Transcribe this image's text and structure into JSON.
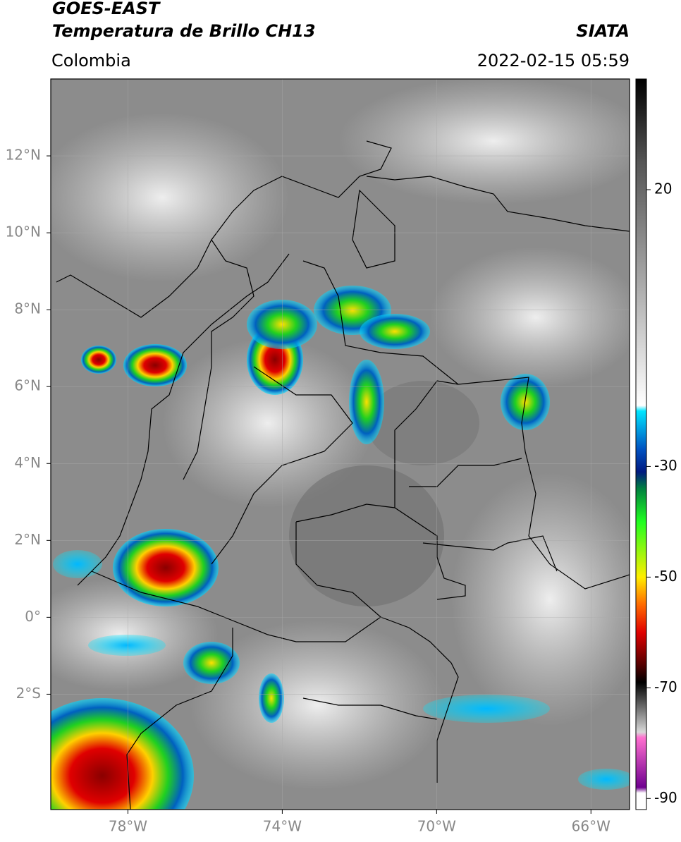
{
  "header": {
    "title": "GOES-EAST",
    "subtitle": "Temperatura de Brillo CH13",
    "source": "SIATA",
    "region": "Colombia",
    "datetime": "2022-02-15 05:59"
  },
  "map": {
    "xlim": [
      -80,
      -65
    ],
    "ylim": [
      -5,
      14
    ],
    "grid": true,
    "xticks": [
      {
        "value": -78,
        "label": "78°W"
      },
      {
        "value": -74,
        "label": "74°W"
      },
      {
        "value": -70,
        "label": "70°W"
      },
      {
        "value": -66,
        "label": "66°W"
      }
    ],
    "yticks": [
      {
        "value": 12,
        "label": "12°N"
      },
      {
        "value": 10,
        "label": "10°N"
      },
      {
        "value": 8,
        "label": "8°N"
      },
      {
        "value": 6,
        "label": "6°N"
      },
      {
        "value": 4,
        "label": "4°N"
      },
      {
        "value": 2,
        "label": "2°N"
      },
      {
        "value": 0,
        "label": "0°"
      },
      {
        "value": -2,
        "label": "2°S"
      }
    ]
  },
  "colorbar": {
    "lim": [
      -92,
      40
    ],
    "ticks": [
      20,
      -30,
      -50,
      -70,
      -90
    ],
    "stops": [
      {
        "value": 40,
        "color": "#000000"
      },
      {
        "value": 25,
        "color": "#555555"
      },
      {
        "value": -19,
        "color": "#ffffff"
      },
      {
        "value": -20,
        "color": "#00e5ff"
      },
      {
        "value": -27,
        "color": "#0050c0"
      },
      {
        "value": -31,
        "color": "#001a80"
      },
      {
        "value": -34,
        "color": "#008040"
      },
      {
        "value": -40,
        "color": "#20ff20"
      },
      {
        "value": -50,
        "color": "#ffee00"
      },
      {
        "value": -55,
        "color": "#ff6a00"
      },
      {
        "value": -60,
        "color": "#e00000"
      },
      {
        "value": -66,
        "color": "#500000"
      },
      {
        "value": -69,
        "color": "#000000"
      },
      {
        "value": -78,
        "color": "#d8d8d8"
      },
      {
        "value": -79,
        "color": "#ff70d0"
      },
      {
        "value": -88,
        "color": "#700090"
      },
      {
        "value": -89,
        "color": "#ffffff"
      }
    ]
  }
}
